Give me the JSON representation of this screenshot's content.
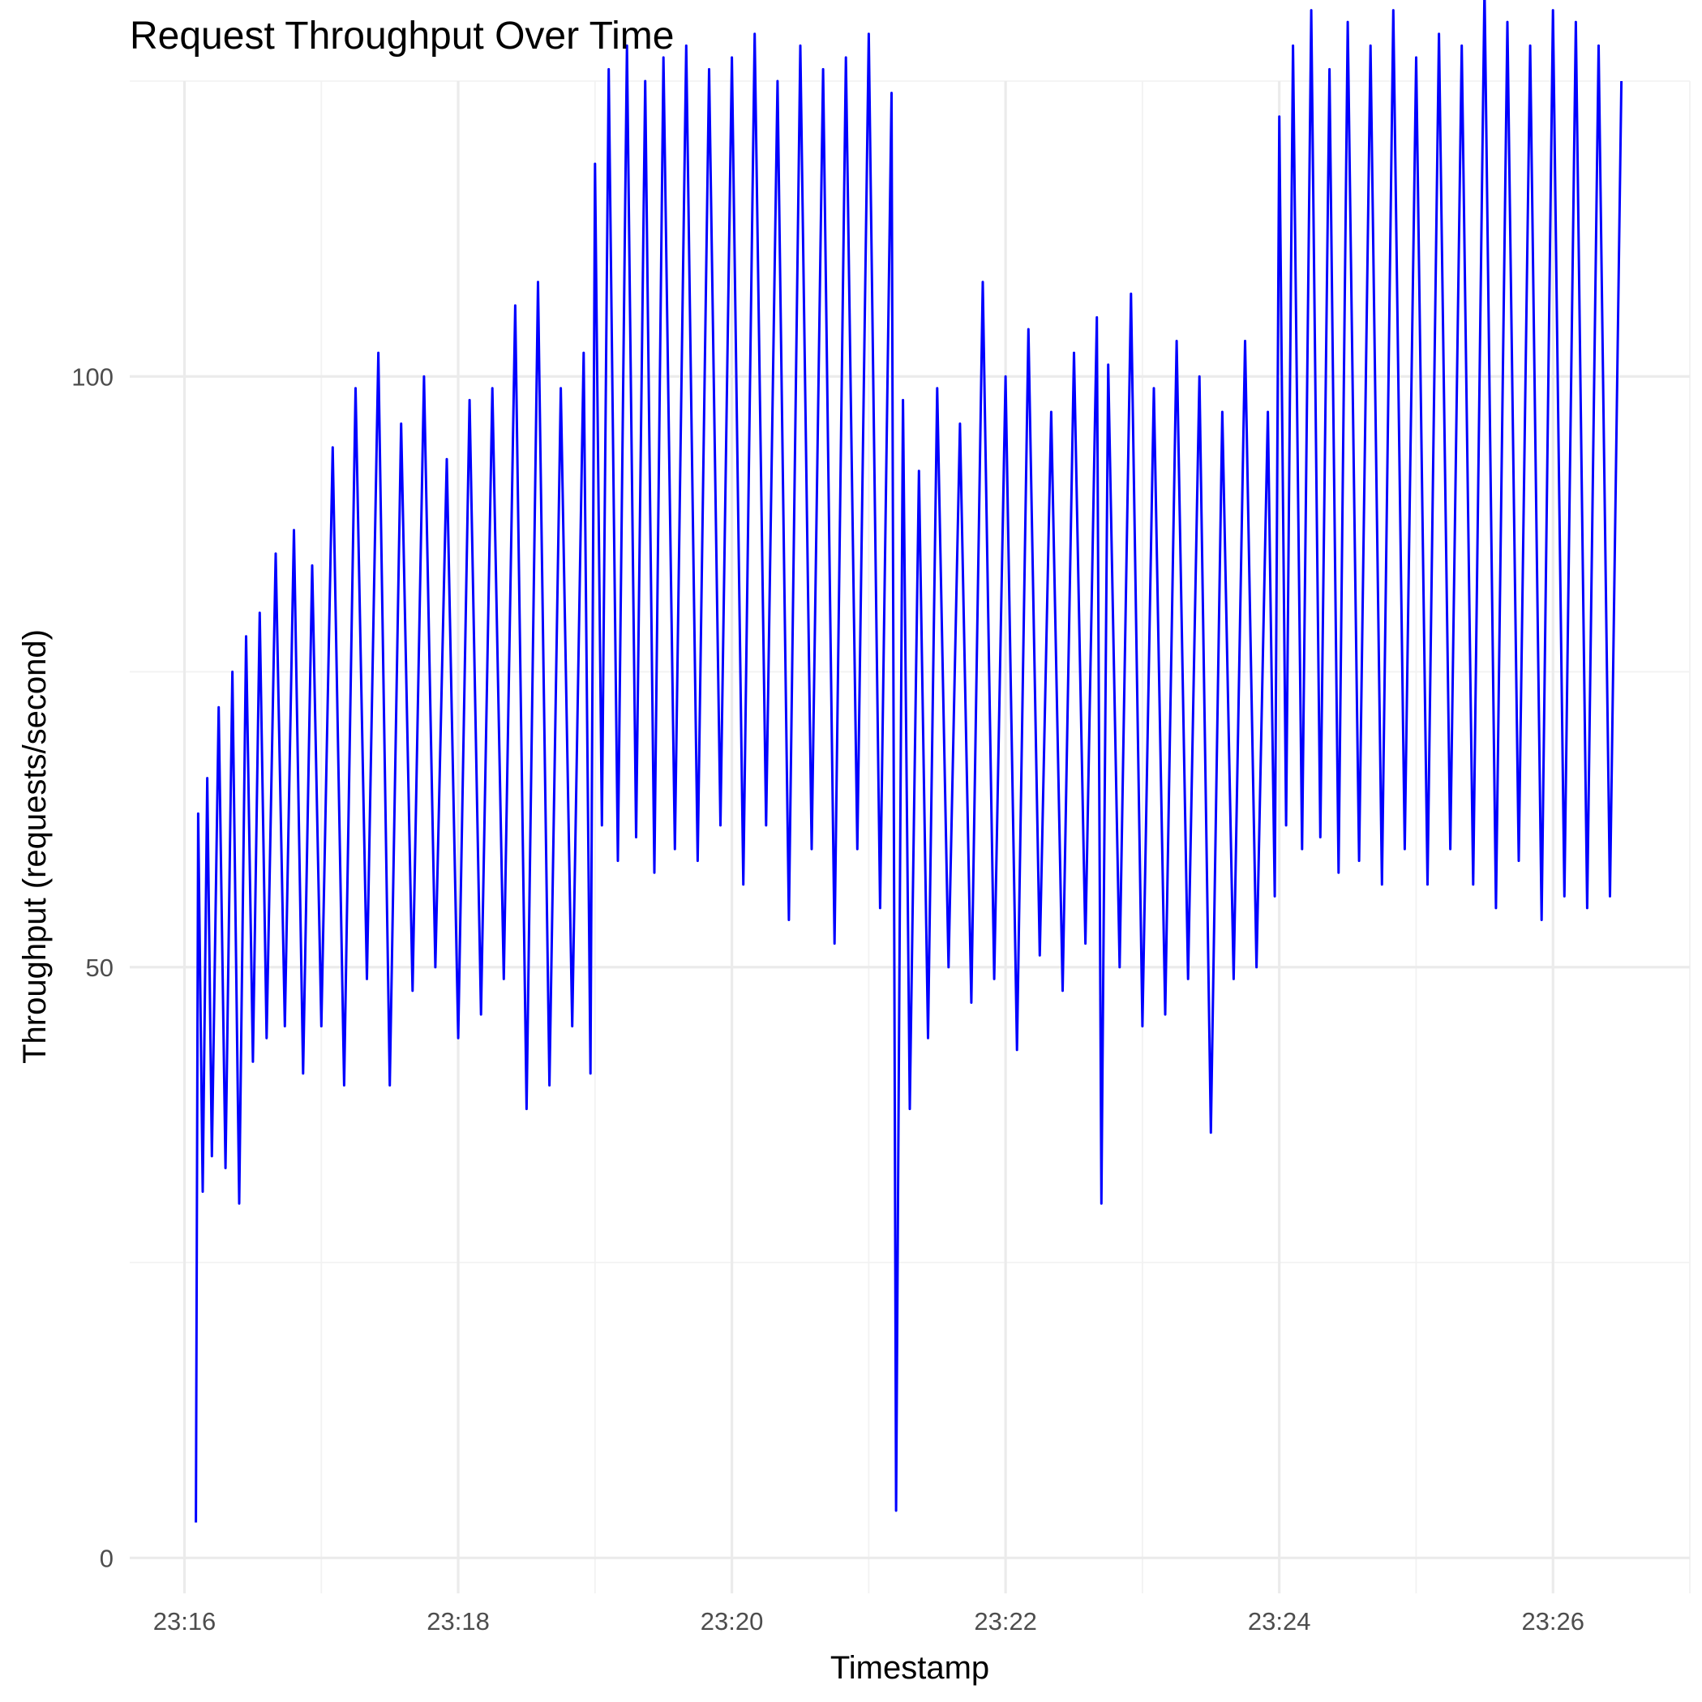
{
  "chart_data": {
    "type": "line",
    "title": "Request Throughput Over Time",
    "xlabel": "Timestamp",
    "ylabel": "Throughput (requests/second)",
    "x_ticks": [
      "23:16",
      "23:18",
      "23:20",
      "23:22",
      "23:24",
      "23:26"
    ],
    "y_ticks": [
      "0",
      "50",
      "100"
    ],
    "xlim": [
      "23:15:36",
      "23:27:00"
    ],
    "ylim": [
      -3,
      125
    ],
    "grid": true,
    "color": "#0000ff",
    "series": [
      {
        "points": [
          [
            "23:16:05",
            3
          ],
          [
            "23:16:06",
            63
          ],
          [
            "23:16:08",
            31
          ],
          [
            "23:16:10",
            66
          ],
          [
            "23:16:12",
            34
          ],
          [
            "23:16:15",
            72
          ],
          [
            "23:16:18",
            33
          ],
          [
            "23:16:21",
            75
          ],
          [
            "23:16:24",
            30
          ],
          [
            "23:16:27",
            78
          ],
          [
            "23:16:30",
            42
          ],
          [
            "23:16:33",
            80
          ],
          [
            "23:16:36",
            44
          ],
          [
            "23:16:40",
            85
          ],
          [
            "23:16:44",
            45
          ],
          [
            "23:16:48",
            87
          ],
          [
            "23:16:52",
            41
          ],
          [
            "23:16:56",
            84
          ],
          [
            "23:17:00",
            45
          ],
          [
            "23:17:05",
            94
          ],
          [
            "23:17:10",
            40
          ],
          [
            "23:17:15",
            99
          ],
          [
            "23:17:20",
            49
          ],
          [
            "23:17:25",
            102
          ],
          [
            "23:17:30",
            40
          ],
          [
            "23:17:35",
            96
          ],
          [
            "23:17:40",
            48
          ],
          [
            "23:17:45",
            100
          ],
          [
            "23:17:50",
            50
          ],
          [
            "23:17:55",
            93
          ],
          [
            "23:18:00",
            44
          ],
          [
            "23:18:05",
            98
          ],
          [
            "23:18:10",
            46
          ],
          [
            "23:18:15",
            99
          ],
          [
            "23:18:20",
            49
          ],
          [
            "23:18:25",
            106
          ],
          [
            "23:18:30",
            38
          ],
          [
            "23:18:35",
            108
          ],
          [
            "23:18:40",
            40
          ],
          [
            "23:18:45",
            99
          ],
          [
            "23:18:50",
            45
          ],
          [
            "23:18:55",
            102
          ],
          [
            "23:18:58",
            41
          ],
          [
            "23:19:00",
            118
          ],
          [
            "23:19:03",
            62
          ],
          [
            "23:19:06",
            126
          ],
          [
            "23:19:10",
            59
          ],
          [
            "23:19:14",
            128
          ],
          [
            "23:19:18",
            61
          ],
          [
            "23:19:22",
            125
          ],
          [
            "23:19:26",
            58
          ],
          [
            "23:19:30",
            127
          ],
          [
            "23:19:35",
            60
          ],
          [
            "23:19:40",
            128
          ],
          [
            "23:19:45",
            59
          ],
          [
            "23:19:50",
            126
          ],
          [
            "23:19:55",
            62
          ],
          [
            "23:20:00",
            127
          ],
          [
            "23:20:05",
            57
          ],
          [
            "23:20:10",
            129
          ],
          [
            "23:20:15",
            62
          ],
          [
            "23:20:20",
            125
          ],
          [
            "23:20:25",
            54
          ],
          [
            "23:20:30",
            128
          ],
          [
            "23:20:35",
            60
          ],
          [
            "23:20:40",
            126
          ],
          [
            "23:20:45",
            52
          ],
          [
            "23:20:50",
            127
          ],
          [
            "23:20:55",
            60
          ],
          [
            "23:21:00",
            129
          ],
          [
            "23:21:05",
            55
          ],
          [
            "23:21:10",
            124
          ],
          [
            "23:21:12",
            4
          ],
          [
            "23:21:15",
            98
          ],
          [
            "23:21:18",
            38
          ],
          [
            "23:21:22",
            92
          ],
          [
            "23:21:26",
            44
          ],
          [
            "23:21:30",
            99
          ],
          [
            "23:21:35",
            50
          ],
          [
            "23:21:40",
            96
          ],
          [
            "23:21:45",
            47
          ],
          [
            "23:21:50",
            108
          ],
          [
            "23:21:55",
            49
          ],
          [
            "23:22:00",
            100
          ],
          [
            "23:22:05",
            43
          ],
          [
            "23:22:10",
            104
          ],
          [
            "23:22:15",
            51
          ],
          [
            "23:22:20",
            97
          ],
          [
            "23:22:25",
            48
          ],
          [
            "23:22:30",
            102
          ],
          [
            "23:22:35",
            52
          ],
          [
            "23:22:40",
            105
          ],
          [
            "23:22:42",
            30
          ],
          [
            "23:22:45",
            101
          ],
          [
            "23:22:50",
            50
          ],
          [
            "23:22:55",
            107
          ],
          [
            "23:23:00",
            45
          ],
          [
            "23:23:05",
            99
          ],
          [
            "23:23:10",
            46
          ],
          [
            "23:23:15",
            103
          ],
          [
            "23:23:20",
            49
          ],
          [
            "23:23:25",
            100
          ],
          [
            "23:23:30",
            36
          ],
          [
            "23:23:35",
            97
          ],
          [
            "23:23:40",
            49
          ],
          [
            "23:23:45",
            103
          ],
          [
            "23:23:50",
            50
          ],
          [
            "23:23:55",
            97
          ],
          [
            "23:23:58",
            56
          ],
          [
            "23:24:00",
            122
          ],
          [
            "23:24:03",
            62
          ],
          [
            "23:24:06",
            128
          ],
          [
            "23:24:10",
            60
          ],
          [
            "23:24:14",
            131
          ],
          [
            "23:24:18",
            61
          ],
          [
            "23:24:22",
            126
          ],
          [
            "23:24:26",
            58
          ],
          [
            "23:24:30",
            130
          ],
          [
            "23:24:35",
            59
          ],
          [
            "23:24:40",
            128
          ],
          [
            "23:24:45",
            57
          ],
          [
            "23:24:50",
            131
          ],
          [
            "23:24:55",
            60
          ],
          [
            "23:25:00",
            127
          ],
          [
            "23:25:05",
            57
          ],
          [
            "23:25:10",
            129
          ],
          [
            "23:25:15",
            60
          ],
          [
            "23:25:20",
            128
          ],
          [
            "23:25:25",
            57
          ],
          [
            "23:25:30",
            133
          ],
          [
            "23:25:35",
            55
          ],
          [
            "23:25:40",
            130
          ],
          [
            "23:25:45",
            59
          ],
          [
            "23:25:50",
            128
          ],
          [
            "23:25:55",
            54
          ],
          [
            "23:26:00",
            131
          ],
          [
            "23:26:05",
            56
          ],
          [
            "23:26:10",
            130
          ],
          [
            "23:26:15",
            55
          ],
          [
            "23:26:20",
            128
          ],
          [
            "23:26:25",
            56
          ],
          [
            "23:26:30",
            125
          ]
        ]
      }
    ]
  }
}
